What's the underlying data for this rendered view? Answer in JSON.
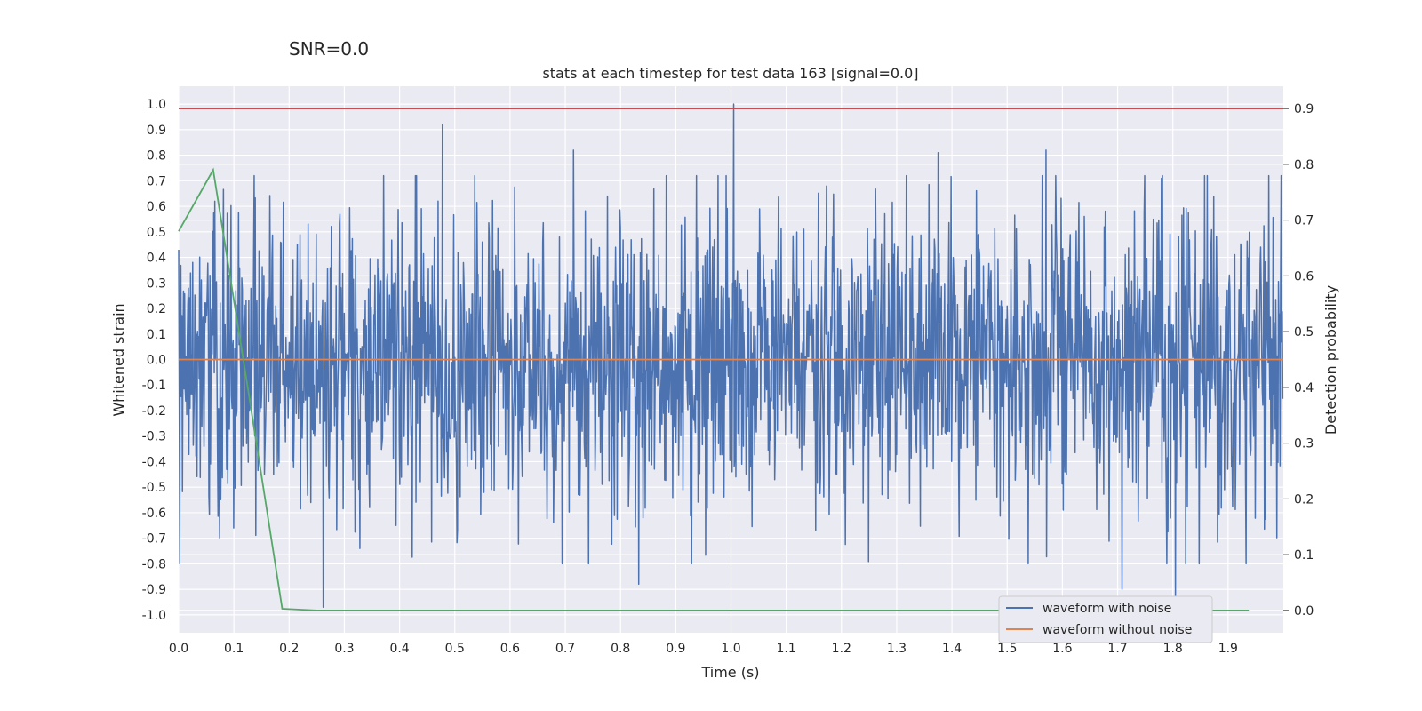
{
  "chart_data": {
    "type": "line",
    "suptitle": "SNR=0.0",
    "title": "stats at each timestep for test data 163 [signal=0.0]",
    "xlabel": "Time (s)",
    "ylabel_left": "Whitened strain",
    "ylabel_right": "Detection probability",
    "xlim": [
      0.0,
      2.0
    ],
    "ylim_left": [
      -1.07,
      1.07
    ],
    "ylim_right": [
      -0.04,
      0.94
    ],
    "x_ticks": [
      "0.0",
      "0.1",
      "0.2",
      "0.3",
      "0.4",
      "0.5",
      "0.6",
      "0.7",
      "0.8",
      "0.9",
      "1.0",
      "1.1",
      "1.2",
      "1.3",
      "1.4",
      "1.5",
      "1.6",
      "1.7",
      "1.8",
      "1.9"
    ],
    "y_left_ticks": [
      "1.0",
      "0.9",
      "0.8",
      "0.7",
      "0.6",
      "0.5",
      "0.4",
      "0.3",
      "0.2",
      "0.1",
      "0.0",
      "-0.1",
      "-0.2",
      "-0.3",
      "-0.4",
      "-0.5",
      "-0.6",
      "-0.7",
      "-0.8",
      "-0.9",
      "-1.0"
    ],
    "y_right_ticks": [
      "0.9",
      "0.8",
      "0.7",
      "0.6",
      "0.5",
      "0.4",
      "0.3",
      "0.2",
      "0.1",
      "0.0"
    ],
    "grid": true,
    "legend_position": "lower-right",
    "series": [
      {
        "name": "waveform with noise",
        "axis": "left",
        "color": "#4c72b0",
        "sample_rate_hz": 1024,
        "noise_std": 0.3,
        "random_seed": 163,
        "peaks": [
          {
            "x": 1.005,
            "y": 1.0
          },
          {
            "x": 0.478,
            "y": 0.92
          },
          {
            "x": 0.715,
            "y": 0.82
          },
          {
            "x": 1.375,
            "y": 0.81
          },
          {
            "x": 1.57,
            "y": 0.82
          },
          {
            "x": 0.065,
            "y": 0.62
          },
          {
            "x": 0.262,
            "y": -0.97
          },
          {
            "x": 1.805,
            "y": -0.95
          },
          {
            "x": 0.833,
            "y": -0.88
          },
          {
            "x": 1.708,
            "y": -0.9
          }
        ]
      },
      {
        "name": "waveform without noise",
        "axis": "left",
        "color": "#dd8452",
        "x": [
          0.0,
          2.0
        ],
        "y": [
          0.0,
          0.0
        ]
      },
      {
        "name": "detection probability",
        "axis": "right",
        "color": "#55a868",
        "x": [
          0.0,
          0.0625,
          0.125,
          0.1875,
          0.25,
          1.9375
        ],
        "y": [
          0.68,
          0.79,
          0.4,
          0.003,
          0.0,
          0.0
        ]
      },
      {
        "name": "threshold",
        "axis": "right",
        "color": "#c44e52",
        "x": [
          0.0,
          2.0
        ],
        "y": [
          0.9,
          0.9
        ]
      }
    ],
    "legend": [
      "waveform with noise",
      "waveform without noise"
    ]
  }
}
